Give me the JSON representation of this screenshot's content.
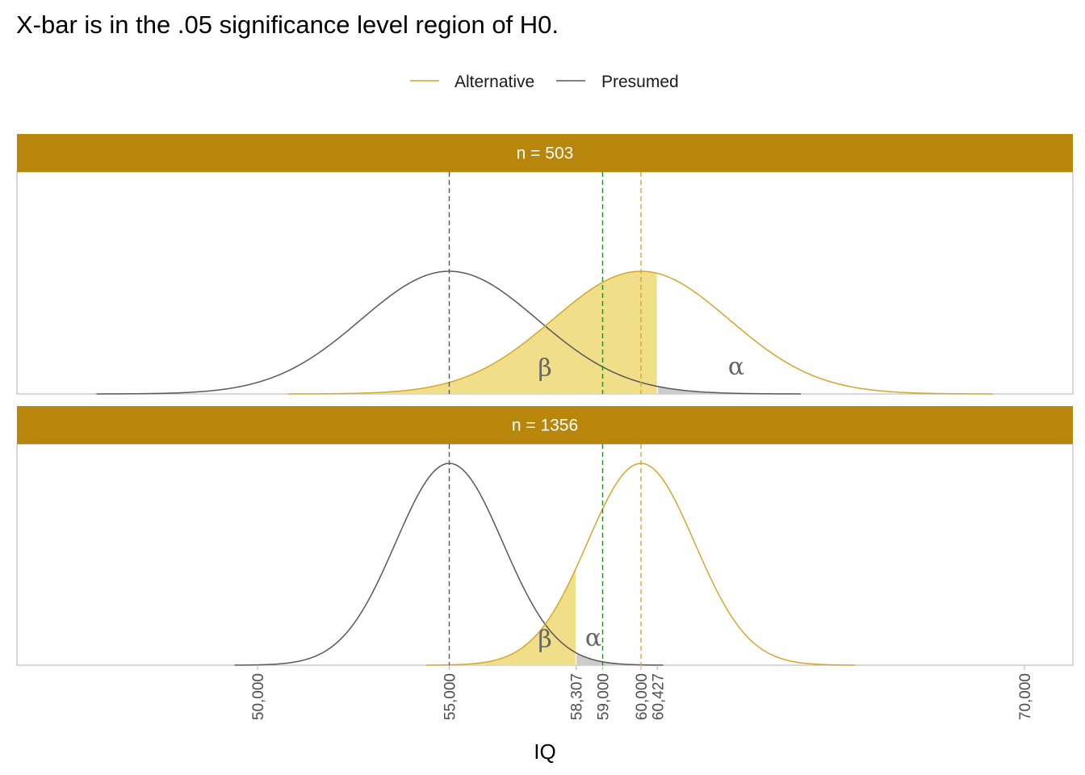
{
  "chart_data": {
    "type": "area",
    "title": "X-bar is in the .05 significance level region of H0.",
    "xlabel": "IQ",
    "ylabel": "",
    "xlim": [
      43500,
      71200
    ],
    "x_ticks": [
      50000,
      55000,
      58307,
      59000,
      60000,
      60427,
      70000
    ],
    "x_tick_labels": [
      "50,000",
      "55,000",
      "58,307",
      "59,000",
      "60,000",
      "60,427",
      "70,000"
    ],
    "legend": {
      "position": "top",
      "entries": [
        {
          "name": "Alternative",
          "color": "#D4A72C"
        },
        {
          "name": "Presumed",
          "color": "#595959"
        }
      ]
    },
    "colors": {
      "alternative": "#D4A72C",
      "presumed": "#595959",
      "beta_fill": "#F0DF88",
      "alpha_fill": "#CCCCCC",
      "strip": "#B8860B",
      "xbar_line": "#228B22"
    },
    "xbar": 59000,
    "panels": [
      {
        "label": "n = 503",
        "presumed_mean": 55000,
        "alternative_mean": 60000,
        "sd": 2300,
        "critical_value": 60427,
        "beta_label": "β",
        "alpha_label": "α"
      },
      {
        "label": "n = 1356",
        "presumed_mean": 55000,
        "alternative_mean": 60000,
        "sd": 1400,
        "critical_value": 58307,
        "beta_label": "β",
        "alpha_label": "α"
      }
    ],
    "grid": false
  }
}
